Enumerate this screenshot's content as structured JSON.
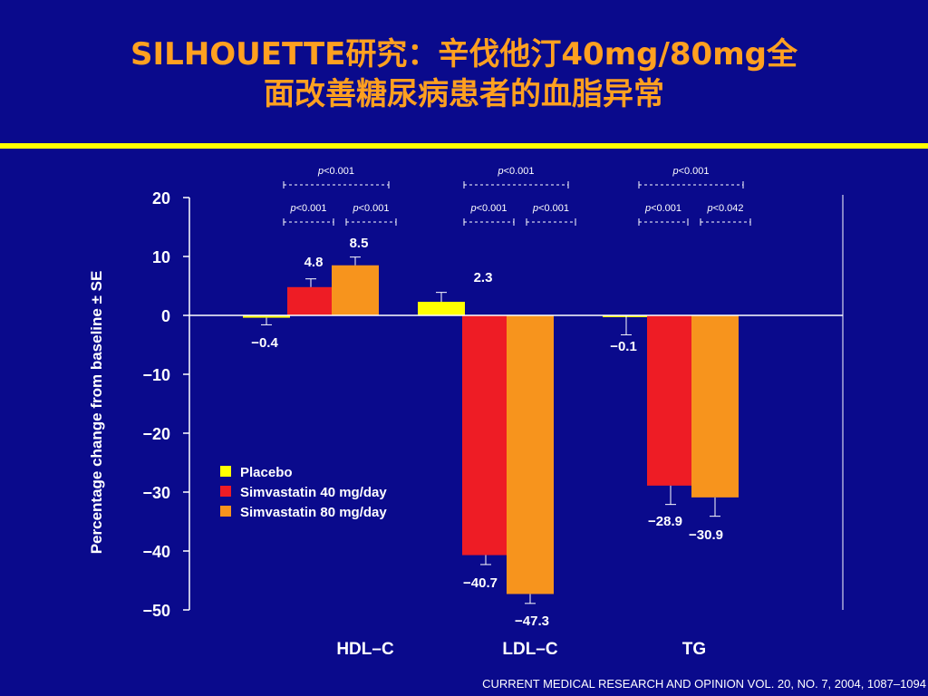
{
  "title_line1": "SILHOUETTE研究：辛伐他汀40mg/80mg全",
  "title_line2": "面改善糖尿病患者的血脂异常",
  "source": "CURRENT MEDICAL RESEARCH AND OPINION VOL. 20, NO. 7, 2004, 1087–1094",
  "colors": {
    "background": "#0a0a8c",
    "title": "#ffa020",
    "rule": "#ffff00",
    "placebo": "#ffff00",
    "simva40": "#ee1c25",
    "simva80": "#f7941d",
    "axis": "#ffffff"
  },
  "chart_data": {
    "type": "bar",
    "categories": [
      "HDL–C",
      "LDL–C",
      "TG"
    ],
    "series": [
      {
        "name": "Placebo",
        "values": [
          -0.4,
          2.3,
          -0.1
        ],
        "errors": [
          1.2,
          1.6,
          3.2
        ]
      },
      {
        "name": "Simvastatin  40 mg/day",
        "values": [
          4.8,
          -40.7,
          -28.9
        ],
        "errors": [
          1.4,
          1.6,
          3.2
        ]
      },
      {
        "name": "Simvastatin  80 mg/day",
        "values": [
          8.5,
          -47.3,
          -30.9
        ],
        "errors": [
          1.4,
          1.6,
          3.2
        ]
      }
    ],
    "value_labels": [
      [
        "−0.4",
        "2.3",
        "−0.1"
      ],
      [
        "4.8",
        "−40.7",
        "−28.9"
      ],
      [
        "8.5",
        "−47.3",
        "−30.9"
      ]
    ],
    "ylabel": "Percentage change from baseline  ± SE",
    "ylim": [
      -50,
      20
    ],
    "yticks": [
      20,
      10,
      0,
      -10,
      -20,
      -30,
      -40,
      -50
    ],
    "ytick_labels": [
      "20",
      "10",
      "0",
      "−10",
      "−20",
      "−30",
      "−40",
      "−50"
    ],
    "legend_position": "lower-left",
    "grid": false,
    "p_values": [
      {
        "overall": "p<0.001",
        "vs40": "p<0.001",
        "vs80": "p<0.001"
      },
      {
        "overall": "p<0.001",
        "vs40": "p<0.001",
        "vs80": "p<0.001"
      },
      {
        "overall": "p<0.001",
        "vs40": "p<0.001",
        "vs80": "p<0.042"
      }
    ]
  }
}
